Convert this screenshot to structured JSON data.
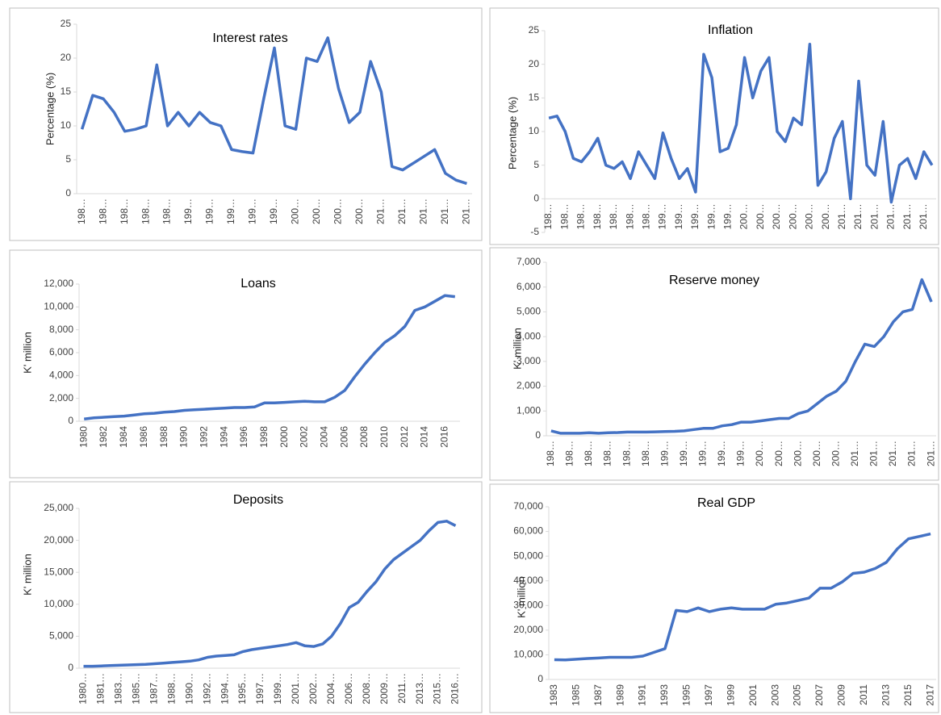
{
  "chart_data": [
    {
      "type": "line",
      "title": "Interest rates",
      "y_label": "Percentage (%)",
      "color": "#4472c4",
      "ylim": [
        0,
        25
      ],
      "yticks": [
        0,
        5,
        10,
        15,
        20,
        25
      ],
      "categories": [
        "198…",
        null,
        "198…",
        null,
        "198…",
        null,
        "198…",
        null,
        "198…",
        null,
        "199…",
        null,
        "199…",
        null,
        "199…",
        null,
        "199…",
        null,
        "199…",
        null,
        "200…",
        null,
        "200…",
        null,
        "200…",
        null,
        "200…",
        null,
        "201…",
        null,
        "201…",
        null,
        "201…",
        null,
        "201…",
        null,
        "201…"
      ],
      "values": [
        9.5,
        14.5,
        14,
        12,
        9.2,
        9.5,
        10,
        19,
        10,
        12,
        10,
        12,
        10.5,
        10,
        6.5,
        6.2,
        6,
        14,
        21.5,
        10,
        9.5,
        20,
        19.5,
        23,
        15.5,
        10.5,
        12,
        19.5,
        15,
        4,
        3.5,
        4.5,
        5.5,
        6.5,
        3,
        2,
        1.5
      ]
    },
    {
      "type": "line",
      "title": "Inflation",
      "y_label": "Percentage (%)",
      "color": "#4472c4",
      "ylim": [
        -5,
        25
      ],
      "yticks": [
        -5,
        0,
        5,
        10,
        15,
        20,
        25
      ],
      "categories": [
        "198…",
        null,
        "198…",
        null,
        "198…",
        null,
        "198…",
        null,
        "198…",
        null,
        "198…",
        null,
        "198…",
        null,
        "199…",
        null,
        "199…",
        null,
        "199…",
        null,
        "199…",
        null,
        "199…",
        null,
        "200…",
        null,
        "200…",
        null,
        "200…",
        null,
        "200…",
        null,
        "200…",
        null,
        "200…",
        null,
        "201…",
        null,
        "201…",
        null,
        "201…",
        null,
        "201…",
        null,
        "201…",
        null,
        "201…",
        null
      ],
      "values": [
        12,
        12.3,
        10,
        6,
        5.5,
        7,
        9,
        5,
        4.5,
        5.5,
        3,
        7,
        5,
        3,
        9.8,
        6,
        3,
        4.5,
        1,
        21.5,
        18,
        7,
        7.5,
        11,
        21,
        15,
        19,
        21,
        10,
        8.5,
        12,
        11,
        23,
        2,
        4,
        9,
        11.5,
        0,
        17.5,
        5,
        3.5,
        11.5,
        -0.5,
        5,
        6,
        3,
        7,
        5
      ]
    },
    {
      "type": "line",
      "title": "Loans",
      "y_label": "K' million",
      "color": "#4472c4",
      "ylim": [
        0,
        12000
      ],
      "yticks": [
        0,
        {
          "value": 2000,
          "label": "2,000"
        },
        {
          "value": 4000,
          "label": "4,000"
        },
        {
          "value": 6000,
          "label": "6,000"
        },
        {
          "value": 8000,
          "label": "8,000"
        },
        {
          "value": 10000,
          "label": "10,000"
        },
        {
          "value": 12000,
          "label": "12,000"
        }
      ],
      "categories": [
        "1980",
        null,
        "1982",
        null,
        "1984",
        null,
        "1986",
        null,
        "1988",
        null,
        "1990",
        null,
        "1992",
        null,
        "1994",
        null,
        "1996",
        null,
        "1998",
        null,
        "2000",
        null,
        "2002",
        null,
        "2004",
        null,
        "2006",
        null,
        "2008",
        null,
        "2010",
        null,
        "2012",
        null,
        "2014",
        null,
        "2016",
        null
      ],
      "values": [
        200,
        300,
        350,
        400,
        450,
        550,
        650,
        700,
        800,
        850,
        950,
        1000,
        1050,
        1100,
        1150,
        1200,
        1200,
        1250,
        1600,
        1600,
        1650,
        1700,
        1750,
        1700,
        1700,
        2100,
        2700,
        3900,
        5000,
        6000,
        6900,
        7500,
        8300,
        9700,
        10000,
        10500,
        11000,
        10900
      ]
    },
    {
      "type": "line",
      "title": "Reserve money",
      "y_label": "K' million",
      "color": "#4472c4",
      "ylim": [
        0,
        7000
      ],
      "yticks": [
        0,
        {
          "value": 1000,
          "label": "1,000"
        },
        {
          "value": 2000,
          "label": "2,000"
        },
        {
          "value": 3000,
          "label": "3,000"
        },
        {
          "value": 4000,
          "label": "4,000"
        },
        {
          "value": 5000,
          "label": "5,000"
        },
        {
          "value": 6000,
          "label": "6,000"
        },
        {
          "value": 7000,
          "label": "7,000"
        }
      ],
      "categories": [
        "198…",
        null,
        "198…",
        null,
        "198…",
        null,
        "198…",
        null,
        "198…",
        null,
        "198…",
        null,
        "199…",
        null,
        "199…",
        null,
        "199…",
        null,
        "199…",
        null,
        "199…",
        null,
        "200…",
        null,
        "200…",
        null,
        "200…",
        null,
        "200…",
        null,
        "200…",
        null,
        "201…",
        null,
        "201…",
        null,
        "201…",
        null,
        "201…",
        null,
        "201…"
      ],
      "values": [
        200,
        100,
        100,
        100,
        120,
        100,
        120,
        130,
        150,
        150,
        150,
        160,
        170,
        180,
        200,
        250,
        300,
        300,
        400,
        450,
        550,
        550,
        600,
        650,
        700,
        700,
        900,
        1000,
        1300,
        1600,
        1800,
        2200,
        3000,
        3700,
        3600,
        4000,
        4600,
        5000,
        5100,
        6300,
        5400
      ]
    },
    {
      "type": "line",
      "title": "Deposits",
      "y_label": "K' million",
      "color": "#4472c4",
      "ylim": [
        0,
        25000
      ],
      "yticks": [
        0,
        {
          "value": 5000,
          "label": "5,000"
        },
        {
          "value": 10000,
          "label": "10,000"
        },
        {
          "value": 15000,
          "label": "15,000"
        },
        {
          "value": 20000,
          "label": "20,000"
        },
        {
          "value": 25000,
          "label": "25,000"
        }
      ],
      "categories": [
        "1980…",
        null,
        "1981…",
        null,
        "1983…",
        null,
        "1985…",
        null,
        "1987…",
        null,
        "1988…",
        null,
        "1990…",
        null,
        "1992…",
        null,
        "1994…",
        null,
        "1995…",
        null,
        "1997…",
        null,
        "1999…",
        null,
        "2001…",
        null,
        "2002…",
        null,
        "2004…",
        null,
        "2006…",
        null,
        "2008…",
        null,
        "2009…",
        null,
        "2011…",
        null,
        "2013…",
        null,
        "2015…",
        null,
        "2016…"
      ],
      "values": [
        300,
        300,
        350,
        400,
        450,
        500,
        550,
        600,
        700,
        800,
        900,
        1000,
        1100,
        1300,
        1700,
        1900,
        2000,
        2100,
        2600,
        2900,
        3100,
        3300,
        3500,
        3700,
        4000,
        3500,
        3400,
        3800,
        5000,
        7000,
        9500,
        10300,
        12000,
        13500,
        15500,
        17000,
        18000,
        19000,
        20000,
        21500,
        22800,
        23000,
        22300
      ]
    },
    {
      "type": "line",
      "title": "Real GDP",
      "y_label": "K' million",
      "color": "#4472c4",
      "ylim": [
        0,
        70000
      ],
      "yticks": [
        0,
        {
          "value": 10000,
          "label": "10,000"
        },
        {
          "value": 20000,
          "label": "20,000"
        },
        {
          "value": 30000,
          "label": "30,000"
        },
        {
          "value": 40000,
          "label": "40,000"
        },
        {
          "value": 50000,
          "label": "50,000"
        },
        {
          "value": 60000,
          "label": "60,000"
        },
        {
          "value": 70000,
          "label": "70,000"
        }
      ],
      "categories": [
        "1983",
        null,
        "1985",
        null,
        "1987",
        null,
        "1989",
        null,
        "1991",
        null,
        "1993",
        null,
        "1995",
        null,
        "1997",
        null,
        "1999",
        null,
        "2001",
        null,
        "2003",
        null,
        "2005",
        null,
        "2007",
        null,
        "2009",
        null,
        "2011",
        null,
        "2013",
        null,
        "2015",
        null,
        "2017"
      ],
      "values": [
        8000,
        7900,
        8200,
        8500,
        8700,
        9000,
        9000,
        9000,
        9500,
        11000,
        12500,
        28000,
        27500,
        29000,
        27500,
        28500,
        29000,
        28500,
        28500,
        28500,
        30500,
        31000,
        32000,
        33000,
        37000,
        37000,
        39500,
        43000,
        43500,
        45000,
        47500,
        53000,
        57000,
        58000,
        59000
      ]
    }
  ]
}
